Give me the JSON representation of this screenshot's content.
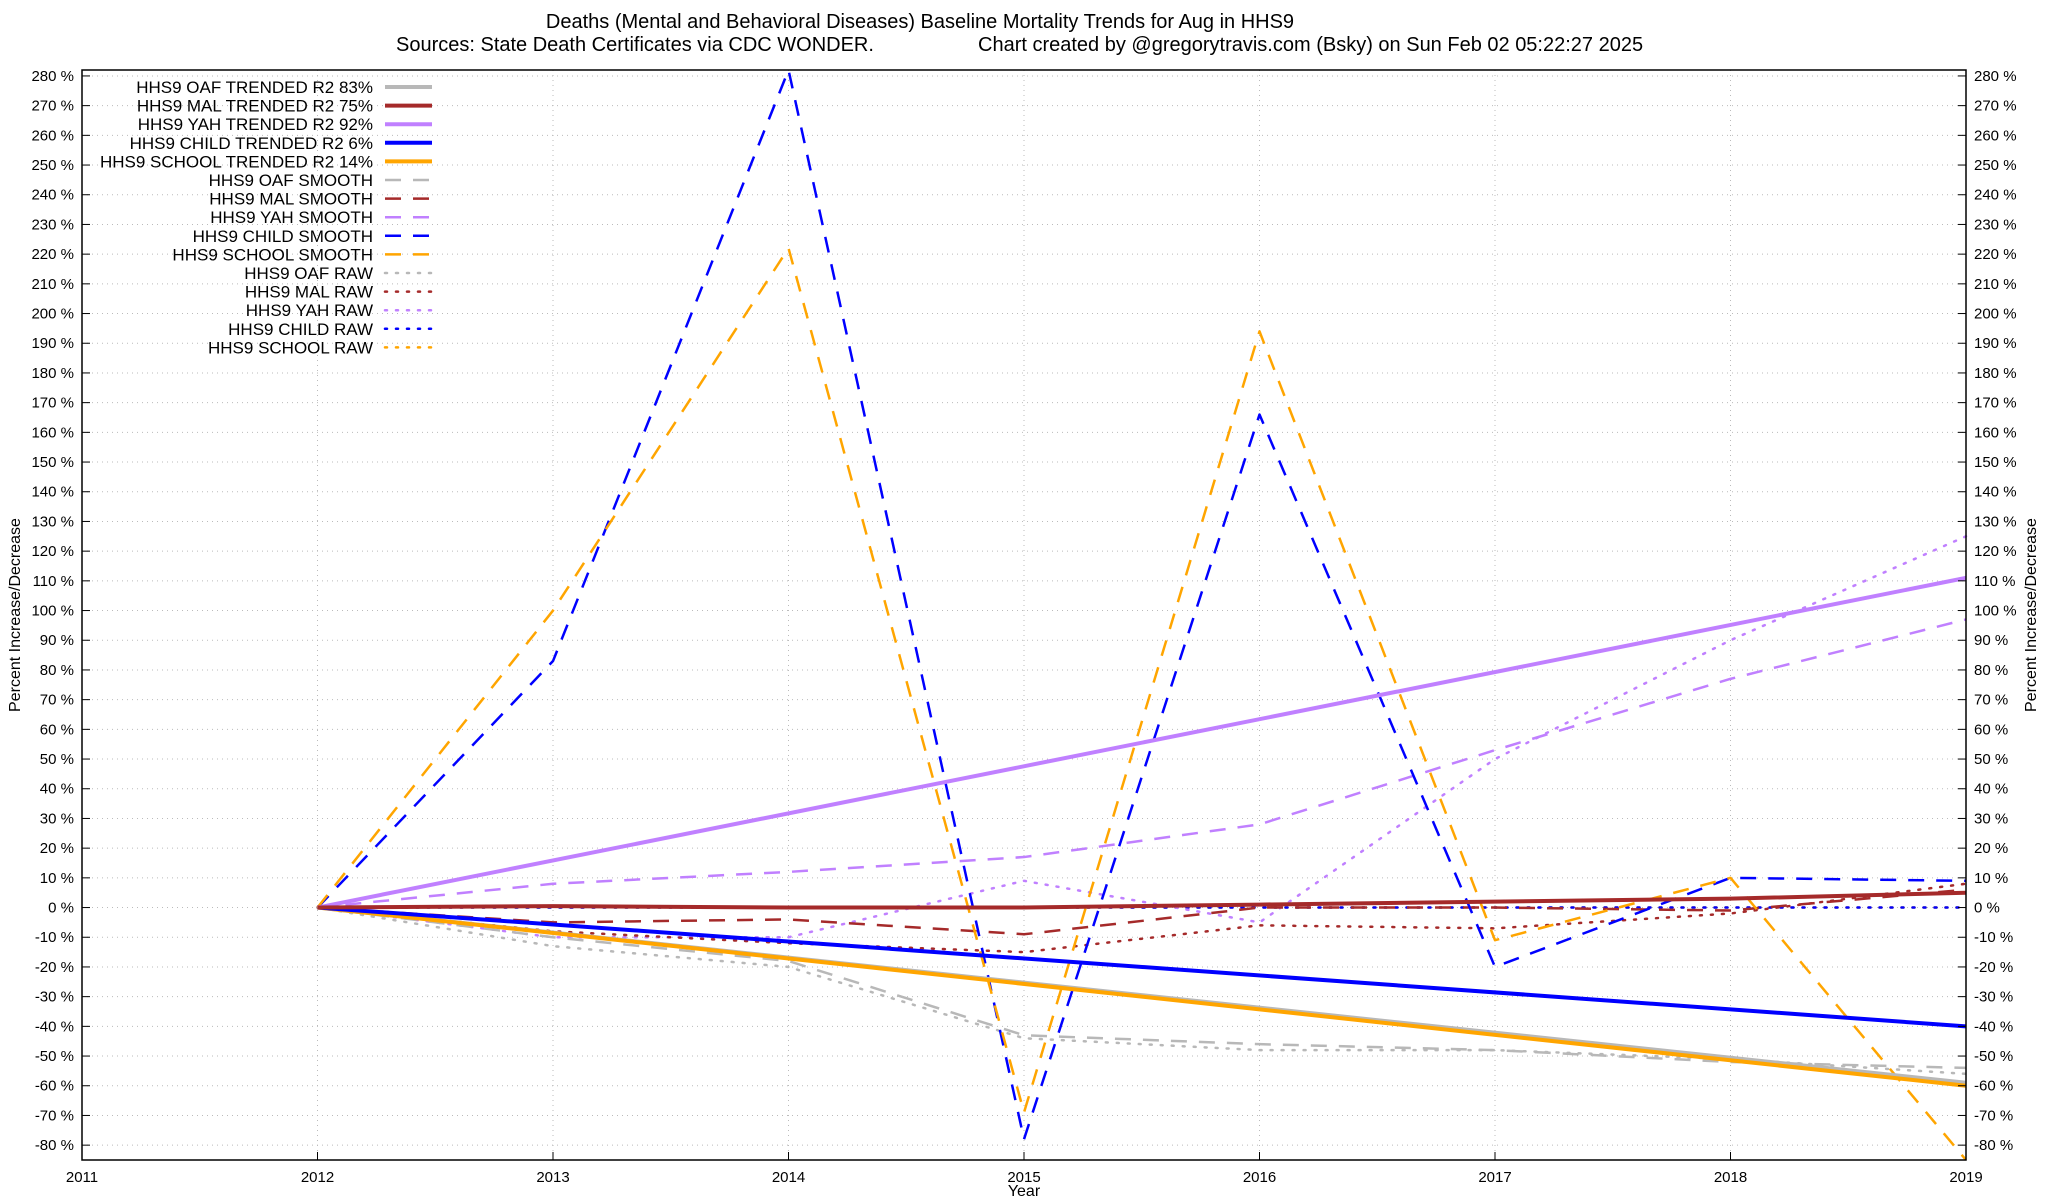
{
  "chart_data": {
    "type": "line",
    "title": "Deaths (Mental and Behavioral Diseases)  Baseline Mortality Trends for Aug in HHS9",
    "subtitle_left": "Sources: State Death Certificates via CDC WONDER.",
    "subtitle_right": "Chart created by @gregorytravis.com (Bsky) on Sun Feb 02 05:22:27 2025",
    "xlabel": "Year",
    "ylabel_left": "Percent Increase/Decrease",
    "ylabel_right": "Percent Increase/Decrease",
    "xlim": [
      2011,
      2019
    ],
    "ylim": [
      -85,
      282
    ],
    "x_ticks": [
      2011,
      2012,
      2013,
      2014,
      2015,
      2016,
      2017,
      2018,
      2019
    ],
    "y_ticks": [
      -80,
      -70,
      -60,
      -50,
      -40,
      -30,
      -20,
      -10,
      0,
      10,
      20,
      30,
      40,
      50,
      60,
      70,
      80,
      90,
      100,
      110,
      120,
      130,
      140,
      150,
      160,
      170,
      180,
      190,
      200,
      210,
      220,
      230,
      240,
      250,
      260,
      270,
      280
    ],
    "y_tick_suffix": " %",
    "grid": true,
    "legend_position": "top-left",
    "series": [
      {
        "name": "HHS9 OAF TRENDED R2  83%",
        "style": "solid",
        "color": "#b8b8b8",
        "width": 4,
        "x": [
          2012,
          2019
        ],
        "y": [
          0,
          -59
        ]
      },
      {
        "name": "HHS9 MAL TRENDED R2  75%",
        "style": "solid",
        "color": "#a52a2a",
        "width": 4,
        "x": [
          2012,
          2013,
          2014,
          2015,
          2016,
          2017,
          2018,
          2019
        ],
        "y": [
          0,
          0.5,
          0,
          0,
          1,
          2,
          3,
          5
        ]
      },
      {
        "name": "HHS9 YAH TRENDED R2  92%",
        "style": "solid",
        "color": "#c080ff",
        "width": 4,
        "x": [
          2012,
          2019
        ],
        "y": [
          0,
          111
        ]
      },
      {
        "name": "HHS9 CHILD TRENDED R2   6%",
        "style": "solid",
        "color": "#0000ff",
        "width": 4,
        "x": [
          2012,
          2019
        ],
        "y": [
          0,
          -40
        ]
      },
      {
        "name": "HHS9 SCHOOL TRENDED R2  14%",
        "style": "solid",
        "color": "#ffa500",
        "width": 4,
        "x": [
          2012,
          2019
        ],
        "y": [
          0,
          -60
        ]
      },
      {
        "name": "HHS9 OAF SMOOTH",
        "style": "dash",
        "color": "#b8b8b8",
        "width": 2.5,
        "x": [
          2012,
          2013,
          2014,
          2015,
          2016,
          2017,
          2018,
          2019
        ],
        "y": [
          0,
          -10,
          -18,
          -43,
          -46,
          -48,
          -52,
          -54
        ]
      },
      {
        "name": "HHS9 MAL SMOOTH",
        "style": "dash",
        "color": "#a52a2a",
        "width": 2.5,
        "x": [
          2012,
          2013,
          2014,
          2015,
          2016,
          2017,
          2018,
          2019
        ],
        "y": [
          0,
          -5,
          -4,
          -9,
          0,
          0,
          -1,
          6
        ]
      },
      {
        "name": "HHS9 YAH SMOOTH",
        "style": "dash",
        "color": "#c080ff",
        "width": 2.5,
        "x": [
          2012,
          2013,
          2014,
          2015,
          2016,
          2017,
          2018,
          2019
        ],
        "y": [
          0,
          8,
          12,
          17,
          28,
          53,
          77,
          97
        ]
      },
      {
        "name": "HHS9 CHILD SMOOTH",
        "style": "dash",
        "color": "#0000ff",
        "width": 2.5,
        "x": [
          2012,
          2013,
          2014,
          2015,
          2016,
          2017,
          2018,
          2019
        ],
        "y": [
          0,
          83,
          282,
          -78,
          166,
          -20,
          10,
          9
        ]
      },
      {
        "name": "HHS9 SCHOOL SMOOTH",
        "style": "dash",
        "color": "#ffa500",
        "width": 2.5,
        "x": [
          2012,
          2013,
          2014,
          2015,
          2016,
          2017,
          2018,
          2019
        ],
        "y": [
          0,
          100,
          222,
          -69,
          194,
          -11,
          10,
          -85
        ]
      },
      {
        "name": "HHS9 OAF RAW",
        "style": "dot",
        "color": "#b8b8b8",
        "width": 2.5,
        "x": [
          2012,
          2013,
          2014,
          2015,
          2016,
          2017,
          2018,
          2019
        ],
        "y": [
          0,
          -13,
          -20,
          -44,
          -48,
          -48,
          -51,
          -56
        ]
      },
      {
        "name": "HHS9 MAL RAW",
        "style": "dot",
        "color": "#a52a2a",
        "width": 2.5,
        "x": [
          2012,
          2013,
          2014,
          2015,
          2016,
          2017,
          2018,
          2019
        ],
        "y": [
          0,
          -8,
          -12,
          -15,
          -6,
          -7,
          -2,
          8
        ]
      },
      {
        "name": "HHS9 YAH RAW",
        "style": "dot",
        "color": "#c080ff",
        "width": 2.5,
        "x": [
          2012,
          2013,
          2014,
          2015,
          2016,
          2017,
          2018,
          2019
        ],
        "y": [
          0,
          -10,
          -10,
          9,
          -5,
          50,
          90,
          125
        ]
      },
      {
        "name": "HHS9 CHILD RAW",
        "style": "dot",
        "color": "#0000ff",
        "width": 2.5,
        "x": [
          2012,
          2013,
          2014,
          2015,
          2016,
          2017,
          2018,
          2019
        ],
        "y": [
          0,
          0,
          0,
          0,
          0,
          0,
          0,
          0
        ]
      },
      {
        "name": "HHS9 SCHOOL RAW",
        "style": "dot",
        "color": "#ffa500",
        "width": 2.5,
        "x": [
          2012,
          2013,
          2014,
          2015,
          2016,
          2017,
          2018,
          2019
        ],
        "y": [
          0,
          0,
          0,
          0,
          0,
          0,
          0,
          0
        ]
      }
    ]
  }
}
